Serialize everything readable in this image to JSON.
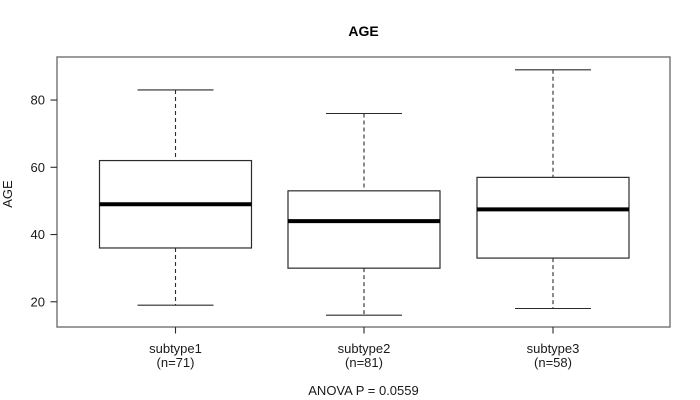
{
  "chart_data": {
    "type": "boxplot",
    "title": "AGE",
    "ylabel": "AGE",
    "xlabel": "",
    "annotation": "ANOVA P = 0.0559",
    "grid": false,
    "legend": null,
    "yticks": [
      20,
      40,
      60,
      80
    ],
    "ylim": [
      12.5,
      92.8
    ],
    "categories": [
      "subtype1",
      "subtype2",
      "subtype3"
    ],
    "category_sublabels": [
      "(n=71)",
      "(n=81)",
      "(n=58)"
    ],
    "series": [
      {
        "name": "subtype1",
        "n": 71,
        "whisker_low": 19,
        "q1": 36,
        "median": 49,
        "q3": 62,
        "whisker_high": 83
      },
      {
        "name": "subtype2",
        "n": 81,
        "whisker_low": 16,
        "q1": 30,
        "median": 44,
        "q3": 53,
        "whisker_high": 76
      },
      {
        "name": "subtype3",
        "n": 58,
        "whisker_low": 18,
        "q1": 33,
        "median": 47.5,
        "q3": 57,
        "whisker_high": 89
      }
    ],
    "colors": {
      "line": "#2b2b2b",
      "frame": "#7a7a7a",
      "median": "#000000",
      "box_fill": "#ffffff",
      "background": "#ffffff"
    }
  }
}
